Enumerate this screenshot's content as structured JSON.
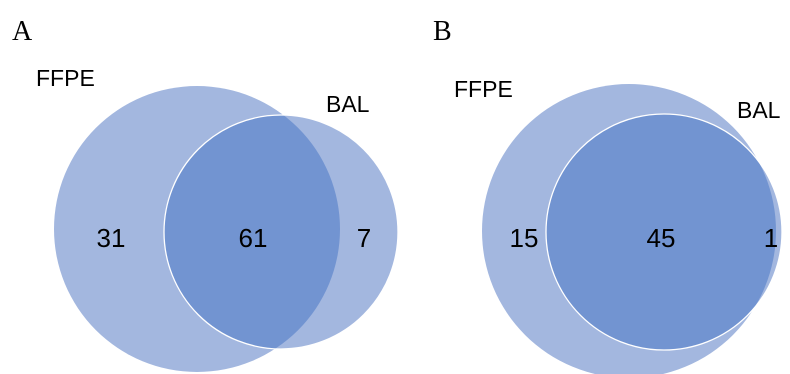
{
  "figure": {
    "colors": {
      "circle_fill": "#a3b7df",
      "overlap_fill": "#7294d1",
      "outline": "#ffffff",
      "text": "#000000"
    },
    "panels": [
      {
        "letter": "A",
        "set_a_label": "FFPE",
        "set_b_label": "BAL",
        "only_a": "31",
        "both": "61",
        "only_b": "7"
      },
      {
        "letter": "B",
        "set_a_label": "FFPE",
        "set_b_label": "BAL",
        "only_a": "15",
        "both": "45",
        "only_b": "1"
      }
    ]
  }
}
